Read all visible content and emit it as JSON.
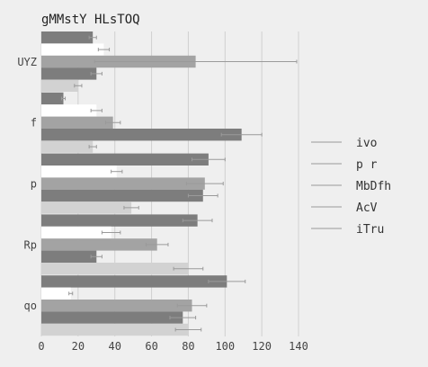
{
  "chart_data": {
    "type": "bar",
    "orientation": "horizontal",
    "title": "gMMstY HLsTOQ",
    "xlabel": "",
    "ylabel": "",
    "xlim": [
      0,
      140
    ],
    "xticks": [
      0,
      20,
      40,
      60,
      80,
      100,
      120,
      140
    ],
    "grid": true,
    "legend_position": "right",
    "categories": [
      "UYZ",
      "f",
      "p",
      "Rp",
      "qo"
    ],
    "series": [
      {
        "name": "ivo",
        "color": "#7d7d7d",
        "values": [
          28,
          12,
          91,
          85,
          101
        ],
        "errors": [
          2,
          1,
          9,
          8,
          10
        ]
      },
      {
        "name": "p r",
        "color": "#ffffff",
        "values": [
          34,
          30,
          41,
          38,
          16
        ],
        "errors": [
          3,
          3,
          3,
          5,
          1
        ]
      },
      {
        "name": "MbDfh",
        "color": "#a3a3a3",
        "values": [
          84,
          39,
          89,
          63,
          82
        ],
        "errors": [
          55,
          4,
          10,
          6,
          8
        ]
      },
      {
        "name": "AcV",
        "color": "#7d7d7d",
        "values": [
          30,
          109,
          88,
          30,
          77
        ],
        "errors": [
          3,
          11,
          8,
          3,
          7
        ]
      },
      {
        "name": "iTru",
        "color": "#d2d2d2",
        "values": [
          20,
          28,
          49,
          80,
          80
        ],
        "errors": [
          2,
          2,
          4,
          8,
          7
        ]
      }
    ],
    "legend": [
      "ivo",
      "p r",
      "MbDfh",
      "AcV",
      "iTru"
    ]
  }
}
